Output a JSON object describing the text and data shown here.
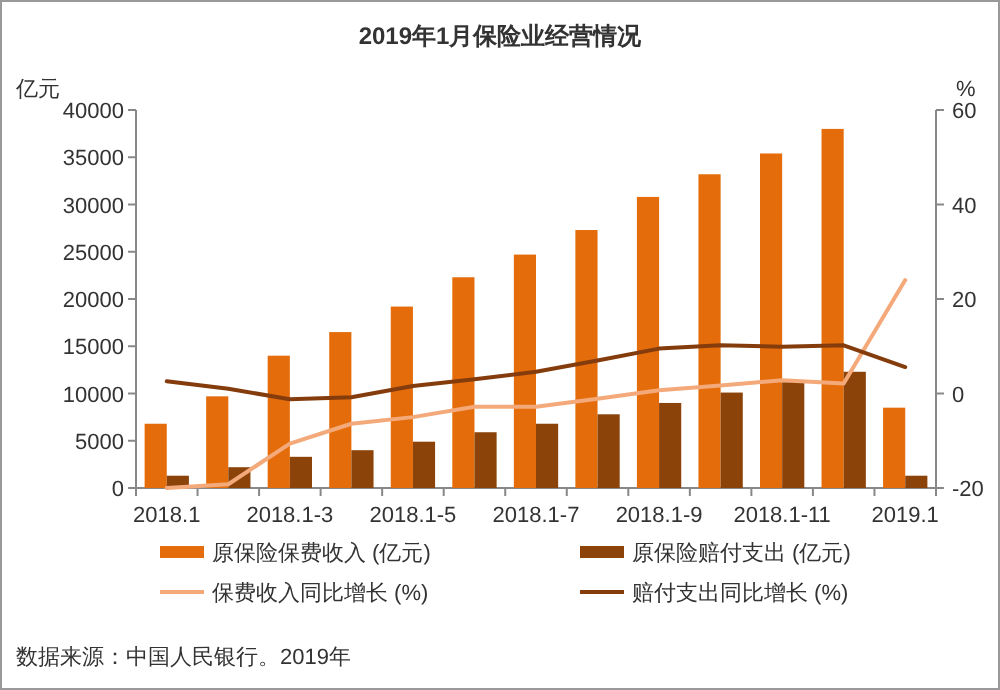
{
  "chart_data": {
    "type": "bar",
    "title": "2019年1月保险业经营情况",
    "ylabel": "亿元",
    "y2label": "%",
    "categories": [
      "2018.1",
      null,
      "2018.1-3",
      null,
      "2018.1-5",
      null,
      "2018.1-7",
      null,
      "2018.1-9",
      null,
      "2018.1-11",
      null,
      "2019.1"
    ],
    "series": [
      {
        "name": "原保险保费收入 (亿元)",
        "color": "#e46c0a",
        "values": [
          6800,
          9700,
          14000,
          16500,
          19200,
          22300,
          24700,
          27300,
          30800,
          33200,
          35400,
          38000,
          8500
        ]
      },
      {
        "name": "原保险赔付支出 (亿元)",
        "color": "#8b4309",
        "values": [
          1300,
          2200,
          3300,
          4000,
          4900,
          5900,
          6800,
          7800,
          9000,
          10100,
          11200,
          12300,
          1300
        ]
      },
      {
        "name": "保费收入同比增长 (%)",
        "type": "line",
        "axis": "y2",
        "color": "#f4a97a",
        "values": [
          -20,
          -19.2,
          -10.6,
          -6.4,
          -5,
          -2.8,
          -2.8,
          -1.1,
          0.7,
          1.7,
          2.8,
          2.1,
          24
        ]
      },
      {
        "name": "赔付支出同比增长 (%)",
        "type": "line",
        "axis": "y2",
        "color": "#843c0c",
        "values": [
          2.6,
          1,
          -1.2,
          -0.8,
          1.6,
          3,
          4.6,
          7,
          9.5,
          10.2,
          9.9,
          10.2,
          5.6
        ]
      }
    ],
    "ylim": [
      0,
      40000
    ],
    "yticks": [
      0,
      5000,
      10000,
      15000,
      20000,
      25000,
      30000,
      35000,
      40000
    ],
    "y2lim": [
      -20,
      60
    ],
    "y2ticks": [
      -20,
      0,
      20,
      40,
      60
    ],
    "legend": "bottom",
    "annotations": [
      "数据来源：中国人民银行。2019年"
    ]
  }
}
